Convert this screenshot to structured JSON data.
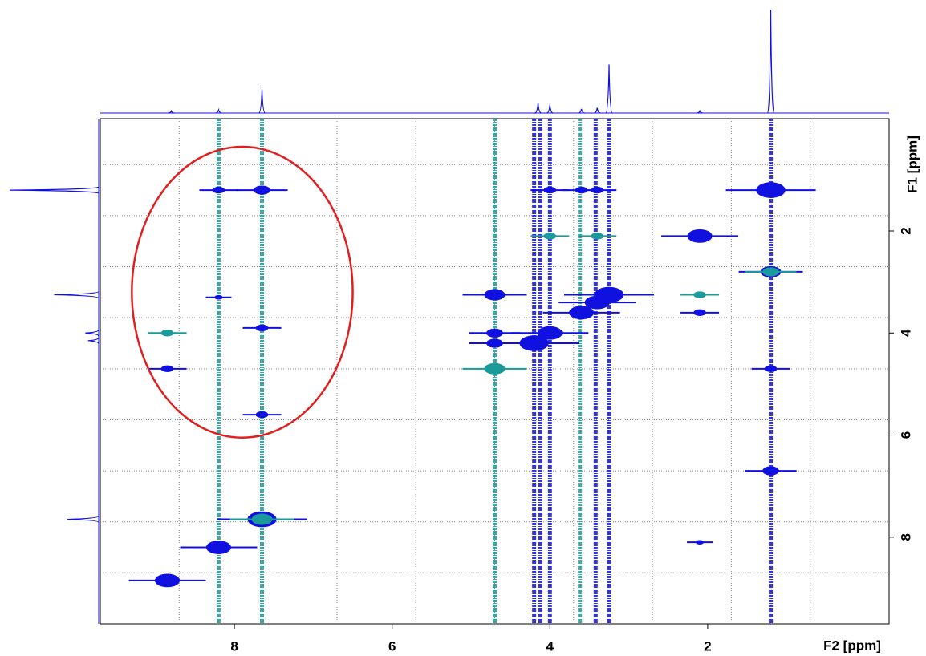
{
  "chart_data": {
    "type": "nmr2d",
    "x_label": "F2 [ppm]",
    "y_label": "F1 [ppm]",
    "xlim": [
      9.7,
      -0.3
    ],
    "ylim": [
      -0.2,
      9.7
    ],
    "xticks": [
      8,
      6,
      4,
      2
    ],
    "yticks": [
      2,
      4,
      6,
      8
    ],
    "grid": [
      0.7,
      1.7,
      2.7,
      3.7,
      4.7,
      5.7,
      6.7,
      7.7,
      8.7
    ],
    "t1_noise": [
      {
        "x": 7.65,
        "color": "#1a9a9a"
      },
      {
        "x": 4.7,
        "color": "#1a9a9a"
      },
      {
        "x": 4.2,
        "color": "#1010e0"
      },
      {
        "x": 4.12,
        "color": "#1010e0"
      },
      {
        "x": 4.0,
        "color": "#1010e0"
      },
      {
        "x": 3.62,
        "color": "#1a9a9a"
      },
      {
        "x": 3.42,
        "color": "#1010e0"
      },
      {
        "x": 3.25,
        "color": "#1010e0"
      },
      {
        "x": 1.2,
        "color": "#1010e0"
      },
      {
        "x": 8.2,
        "color": "#1a9a9a"
      }
    ],
    "series": [
      {
        "color": "#1010e0",
        "x": [
          8.85,
          8.2,
          7.65,
          4.2,
          4.0,
          3.6,
          3.4,
          3.25,
          2.1,
          1.2,
          7.65,
          8.2,
          4.0,
          3.6,
          3.4,
          2.1,
          1.2,
          7.65,
          8.85,
          7.65,
          8.2,
          4.7,
          4.7,
          4.7,
          1.2,
          1.2,
          2.1
        ],
        "y": [
          8.85,
          8.2,
          7.65,
          4.2,
          4.0,
          3.6,
          3.4,
          3.25,
          2.1,
          1.2,
          1.2,
          1.2,
          1.2,
          1.2,
          1.2,
          3.6,
          2.8,
          3.9,
          4.7,
          5.6,
          3.3,
          3.25,
          4.0,
          4.2,
          4.7,
          6.7,
          8.1
        ],
        "intensity": [
          6,
          6,
          7,
          7,
          6,
          6,
          6,
          7,
          6,
          7,
          4,
          3,
          3,
          3,
          3,
          3,
          5,
          3,
          3,
          3,
          2,
          5,
          4,
          4,
          3,
          4,
          2
        ]
      },
      {
        "color": "#1a9a9a",
        "x": [
          2.1,
          8.85,
          4.0,
          3.4,
          4.7,
          1.2,
          7.65
        ],
        "y": [
          3.25,
          4.0,
          2.1,
          2.1,
          4.7,
          2.8,
          7.65
        ],
        "intensity": [
          3,
          3,
          3,
          3,
          5,
          4,
          5
        ]
      }
    ],
    "projection_f2": {
      "color": "#1010e0",
      "x": [
        8.8,
        8.2,
        7.65,
        4.15,
        4.0,
        3.6,
        3.4,
        3.25,
        2.1,
        1.2
      ],
      "height": [
        2,
        3,
        23,
        10,
        8,
        4,
        5,
        47,
        2,
        100
      ]
    },
    "projection_f1": {
      "color": "#1010e0",
      "y": [
        1.2,
        3.25,
        4.0,
        4.15,
        7.65
      ],
      "height": [
        100,
        50,
        15,
        12,
        35
      ]
    },
    "highlight": {
      "cx": 7.9,
      "cy": 3.2,
      "rx": 1.4,
      "ry": 2.85,
      "color": "#e02020"
    }
  }
}
